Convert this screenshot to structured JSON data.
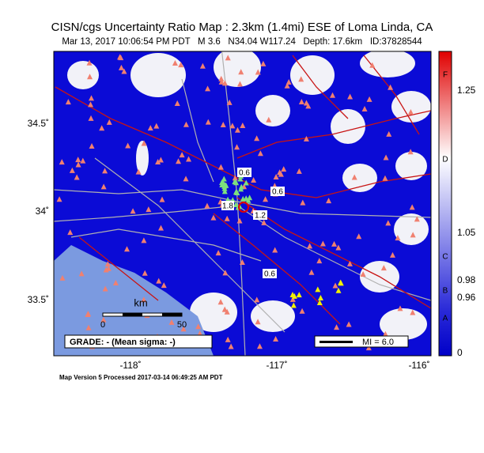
{
  "header": {
    "title": "CISN/cgs Uncertainty Ratio Map : 2.3km (1.4mi) ESE of Loma Linda, CA",
    "subtitle": "Mar 13, 2017 10:06:54 PM PDT   M 3.6   N34.04 W117.24   Depth: 17.6km   ID:37828544"
  },
  "map": {
    "lat_labels": [
      "34.5˚",
      "34˚",
      "33.5˚"
    ],
    "lon_labels": [
      "-118˚",
      "-117˚",
      "-116˚"
    ],
    "contour_labels": [
      "0.6",
      "0.6",
      "1.2",
      "1.8",
      "0.6"
    ],
    "scale": {
      "label": "km",
      "ticks": [
        "0",
        "50"
      ]
    },
    "grade": "GRADE: - (Mean sigma: -)",
    "mi": "MI = 6.0"
  },
  "legend": {
    "ticks": [
      "1.25",
      "1.05",
      "0.98",
      "0.96",
      "0"
    ],
    "grades": [
      "F",
      "D",
      "C",
      "B",
      "A"
    ]
  },
  "footer": "Map Version 5 Processed 2017-03-14 06:49:25 AM PDT"
}
